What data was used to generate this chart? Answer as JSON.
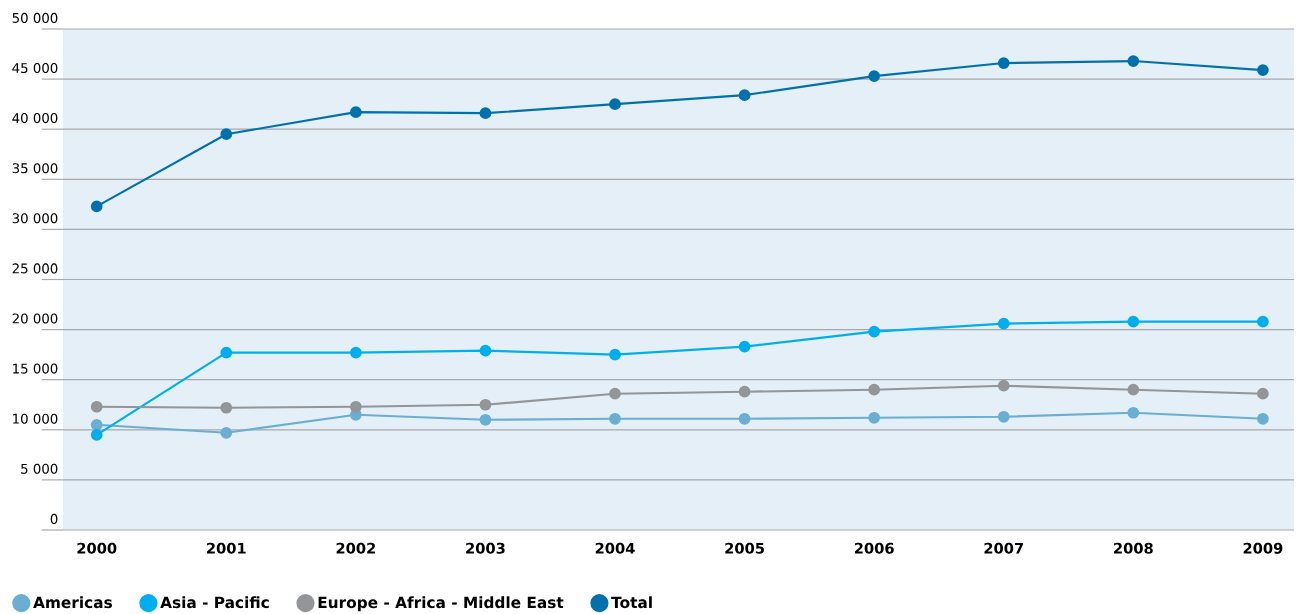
{
  "chart_data": {
    "type": "line",
    "categories": [
      "2000",
      "2001",
      "2002",
      "2003",
      "2004",
      "2005",
      "2006",
      "2007",
      "2008",
      "2009"
    ],
    "series": [
      {
        "name": "Americas",
        "color": "#6aaed3",
        "values": [
          10500,
          9700,
          11500,
          11000,
          11100,
          11100,
          11200,
          11300,
          11700,
          11100
        ]
      },
      {
        "name": "Asia - Pacific",
        "color": "#00aeef",
        "values": [
          9500,
          17700,
          17700,
          17900,
          17500,
          18300,
          19800,
          20600,
          20800,
          20800
        ]
      },
      {
        "name": "Europe - Africa - Middle East",
        "color": "#939598",
        "values": [
          12300,
          12200,
          12300,
          12500,
          13600,
          13800,
          14000,
          14400,
          14000,
          13600
        ]
      },
      {
        "name": "Total",
        "color": "#0071ad",
        "values": [
          32300,
          39500,
          41700,
          41600,
          42500,
          43400,
          45300,
          46600,
          46800,
          45900
        ]
      }
    ],
    "ylim": [
      0,
      50000
    ],
    "yticks": [
      0,
      {
        "value": 5000,
        "label": "5 000"
      },
      {
        "value": 10000,
        "label": "10 000"
      },
      {
        "value": 15000,
        "label": "15 000"
      },
      {
        "value": 20000,
        "label": "20 000"
      },
      {
        "value": 25000,
        "label": "25 000"
      },
      {
        "value": 30000,
        "label": "30 000"
      },
      {
        "value": 35000,
        "label": "35 000"
      },
      {
        "value": 40000,
        "label": "40 000"
      },
      {
        "value": 45000,
        "label": "45 000"
      },
      {
        "value": 50000,
        "label": "50 000"
      }
    ],
    "grid": "y",
    "legend": "bottom left",
    "marker": "circle",
    "line_style": "solid"
  }
}
